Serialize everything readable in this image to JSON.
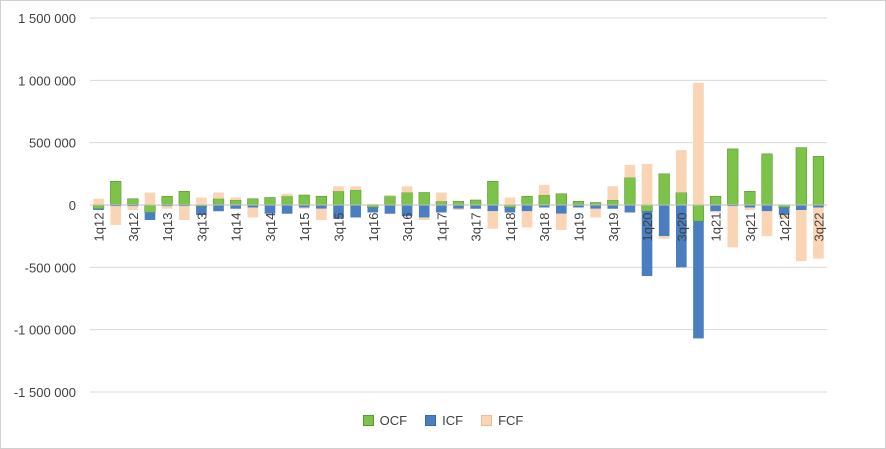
{
  "chart_data": {
    "type": "bar",
    "stacked": true,
    "categories": [
      "1q12",
      "2q12",
      "3q12",
      "4q12",
      "1q13",
      "2q13",
      "3q13",
      "4q13",
      "1q14",
      "2q14",
      "3q14",
      "4q14",
      "1q15",
      "2q15",
      "3q15",
      "4q15",
      "1q16",
      "2q16",
      "3q16",
      "4q16",
      "1q17",
      "2q17",
      "3q17",
      "4q17",
      "1q18",
      "2q18",
      "3q18",
      "4q18",
      "1q19",
      "2q19",
      "3q19",
      "4q19",
      "1q20",
      "2q20",
      "3q20",
      "4q20",
      "1q21",
      "2q21",
      "3q21",
      "4q21",
      "1q22",
      "2q22",
      "3q22"
    ],
    "tick_labels": [
      "1q12",
      "",
      "3q12",
      "",
      "1q13",
      "",
      "3q13",
      "",
      "1q14",
      "",
      "3q14",
      "",
      "1q15",
      "",
      "3q15",
      "",
      "1q16",
      "",
      "3q16",
      "",
      "1q17",
      "",
      "3q17",
      "",
      "1q18",
      "",
      "3q18",
      "",
      "1q19",
      "",
      "3q19",
      "",
      "1q20",
      "",
      "3q20",
      "",
      "1q21",
      "",
      "3q21",
      "",
      "1q22",
      "",
      "3q22"
    ],
    "series": [
      {
        "name": "OCF",
        "color": "#7DC34A",
        "values": [
          -30000,
          190000,
          50000,
          -60000,
          70000,
          110000,
          -10000,
          50000,
          40000,
          50000,
          60000,
          70000,
          80000,
          70000,
          110000,
          120000,
          -20000,
          70000,
          100000,
          100000,
          30000,
          30000,
          40000,
          190000,
          -20000,
          70000,
          80000,
          90000,
          30000,
          20000,
          40000,
          220000,
          -50000,
          250000,
          100000,
          -130000,
          70000,
          450000,
          110000,
          410000,
          -20000,
          460000,
          390000
        ]
      },
      {
        "name": "ICF",
        "color": "#4A7EC0",
        "values": [
          -10000,
          -10000,
          -10000,
          -60000,
          -10000,
          -10000,
          -70000,
          -50000,
          -30000,
          -20000,
          -70000,
          -70000,
          -20000,
          -30000,
          -110000,
          -100000,
          -40000,
          -70000,
          -90000,
          -100000,
          -60000,
          -30000,
          -30000,
          -50000,
          -40000,
          -50000,
          -20000,
          -70000,
          -20000,
          -30000,
          -30000,
          -60000,
          -520000,
          -250000,
          -500000,
          -940000,
          -50000,
          -10000,
          -20000,
          -50000,
          -60000,
          -40000,
          -20000
        ]
      },
      {
        "name": "FCF",
        "color": "#FAD5B5",
        "values": [
          50000,
          -150000,
          -30000,
          100000,
          -20000,
          -110000,
          60000,
          50000,
          20000,
          -80000,
          0,
          20000,
          -10000,
          -90000,
          40000,
          30000,
          10000,
          10000,
          50000,
          -20000,
          70000,
          -10000,
          0,
          -140000,
          60000,
          -130000,
          80000,
          -130000,
          0,
          -70000,
          110000,
          100000,
          330000,
          -20000,
          340000,
          980000,
          -10000,
          -330000,
          -20000,
          -200000,
          -30000,
          -410000,
          -410000
        ]
      }
    ],
    "y_ticks": [
      1500000,
      1000000,
      500000,
      0,
      -500000,
      -1000000,
      -1500000
    ],
    "y_tick_labels": [
      "1 500 000",
      "1 000 000",
      "500 000",
      "0",
      "-500 000",
      "-1 000 000",
      "-1 500 000"
    ],
    "ylim": [
      -1500000,
      1500000
    ],
    "title": "",
    "xlabel": "",
    "ylabel": "",
    "grid": "horizontal",
    "legend": "bottom"
  },
  "legend": [
    {
      "name": "OCF",
      "color": "#7DC34A"
    },
    {
      "name": "ICF",
      "color": "#4A7EC0"
    },
    {
      "name": "FCF",
      "color": "#FAD5B5"
    }
  ]
}
